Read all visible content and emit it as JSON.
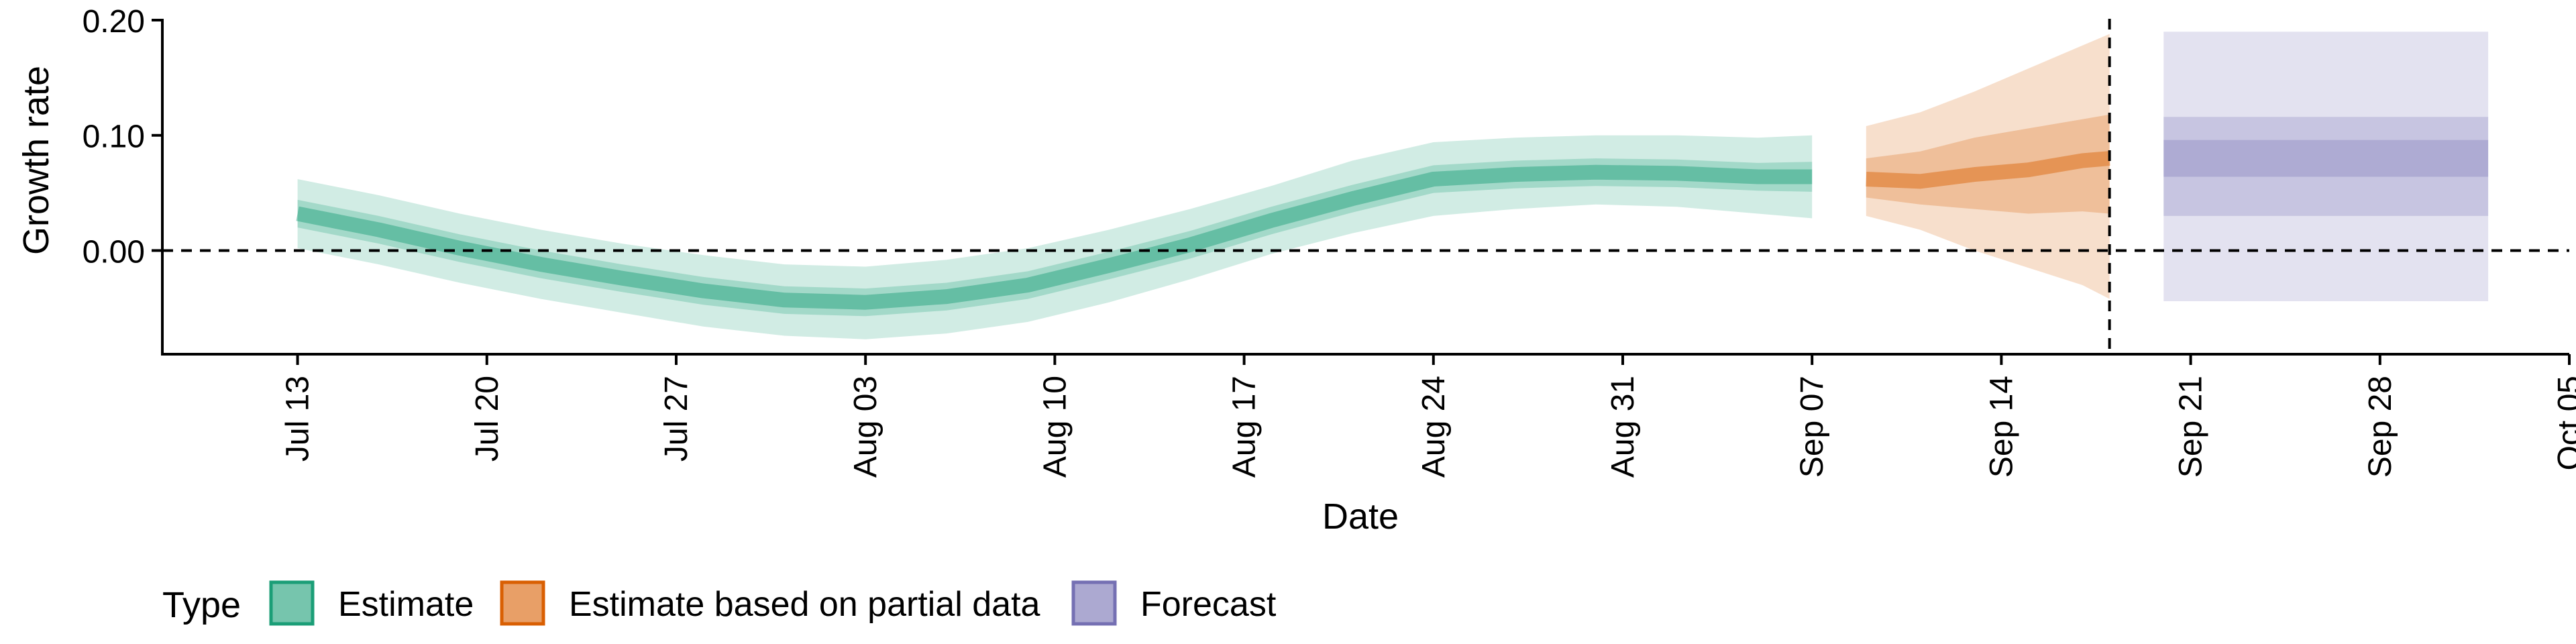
{
  "chart_data": {
    "type": "area",
    "xlabel": "Date",
    "ylabel": "Growth rate",
    "ylim": [
      -0.09,
      0.2
    ],
    "y_ticks": [
      0.0,
      0.1,
      0.2
    ],
    "y_tick_labels": [
      "0.00",
      "0.10",
      "0.20"
    ],
    "x_ticks": [
      "2020-07-13",
      "2020-07-20",
      "2020-07-27",
      "2020-08-03",
      "2020-08-10",
      "2020-08-17",
      "2020-08-24",
      "2020-08-31",
      "2020-09-07",
      "2020-09-14",
      "2020-09-21",
      "2020-09-28",
      "2020-10-05"
    ],
    "x_tick_labels": [
      "Jul 13",
      "Jul 20",
      "Jul 27",
      "Aug 03",
      "Aug 10",
      "Aug 17",
      "Aug 24",
      "Aug 31",
      "Sep 07",
      "Sep 14",
      "Sep 21",
      "Sep 28",
      "Oct 05"
    ],
    "xlim": [
      "2020-07-08",
      "2020-10-05"
    ],
    "hline_y": 0.0,
    "vline_date": "2020-09-18",
    "legend": {
      "title": "Type",
      "placement": "bottom",
      "entries": [
        {
          "label": "Estimate",
          "color": "#1b9e77"
        },
        {
          "label": "Estimate based on partial data",
          "color": "#d95f02"
        },
        {
          "label": "Forecast",
          "color": "#7570b3"
        }
      ]
    },
    "series": [
      {
        "name": "Estimate",
        "color": "#1b9e77",
        "x": [
          "2020-07-13",
          "2020-07-16",
          "2020-07-19",
          "2020-07-22",
          "2020-07-25",
          "2020-07-28",
          "2020-07-31",
          "2020-08-03",
          "2020-08-06",
          "2020-08-09",
          "2020-08-12",
          "2020-08-15",
          "2020-08-18",
          "2020-08-21",
          "2020-08-24",
          "2020-08-27",
          "2020-08-30",
          "2020-09-02",
          "2020-09-05",
          "2020-09-07"
        ],
        "median": [
          0.032,
          0.018,
          0.002,
          -0.012,
          -0.024,
          -0.035,
          -0.043,
          -0.045,
          -0.04,
          -0.03,
          -0.013,
          0.005,
          0.026,
          0.045,
          0.062,
          0.066,
          0.068,
          0.067,
          0.064,
          0.064
        ],
        "lower_90": [
          0.002,
          -0.012,
          -0.028,
          -0.042,
          -0.054,
          -0.066,
          -0.074,
          -0.077,
          -0.072,
          -0.062,
          -0.045,
          -0.025,
          -0.003,
          0.015,
          0.03,
          0.036,
          0.04,
          0.038,
          0.032,
          0.028
        ],
        "upper_90": [
          0.062,
          0.048,
          0.032,
          0.018,
          0.006,
          -0.004,
          -0.012,
          -0.014,
          -0.008,
          0.002,
          0.018,
          0.036,
          0.056,
          0.078,
          0.094,
          0.098,
          0.1,
          0.1,
          0.098,
          0.1
        ],
        "lower_50": [
          0.02,
          0.006,
          -0.01,
          -0.024,
          -0.036,
          -0.047,
          -0.055,
          -0.057,
          -0.052,
          -0.042,
          -0.025,
          -0.007,
          0.014,
          0.033,
          0.05,
          0.054,
          0.056,
          0.055,
          0.052,
          0.051
        ],
        "upper_50": [
          0.044,
          0.03,
          0.014,
          0.0,
          -0.012,
          -0.023,
          -0.031,
          -0.033,
          -0.028,
          -0.018,
          -0.001,
          0.017,
          0.038,
          0.057,
          0.074,
          0.078,
          0.08,
          0.079,
          0.076,
          0.077
        ]
      },
      {
        "name": "Estimate based on partial data",
        "color": "#d95f02",
        "x": [
          "2020-09-09",
          "2020-09-11",
          "2020-09-13",
          "2020-09-15",
          "2020-09-17",
          "2020-09-18"
        ],
        "median": [
          0.062,
          0.06,
          0.066,
          0.07,
          0.078,
          0.08
        ],
        "lower_90": [
          0.03,
          0.018,
          0.0,
          -0.015,
          -0.03,
          -0.042
        ],
        "upper_90": [
          0.108,
          0.12,
          0.138,
          0.158,
          0.178,
          0.188
        ],
        "lower_50": [
          0.046,
          0.04,
          0.036,
          0.032,
          0.034,
          0.032
        ],
        "upper_50": [
          0.08,
          0.086,
          0.098,
          0.106,
          0.114,
          0.118
        ]
      },
      {
        "name": "Forecast",
        "color": "#7570b3",
        "x": [
          "2020-09-20",
          "2020-10-02"
        ],
        "median": [
          0.08,
          0.08
        ],
        "lower_90": [
          -0.044,
          -0.044
        ],
        "upper_90": [
          0.19,
          0.19
        ],
        "lower_50": [
          0.03,
          0.03
        ],
        "upper_50": [
          0.116,
          0.116
        ],
        "lower_20": [
          0.064,
          0.064
        ],
        "upper_20": [
          0.096,
          0.096
        ]
      }
    ]
  }
}
